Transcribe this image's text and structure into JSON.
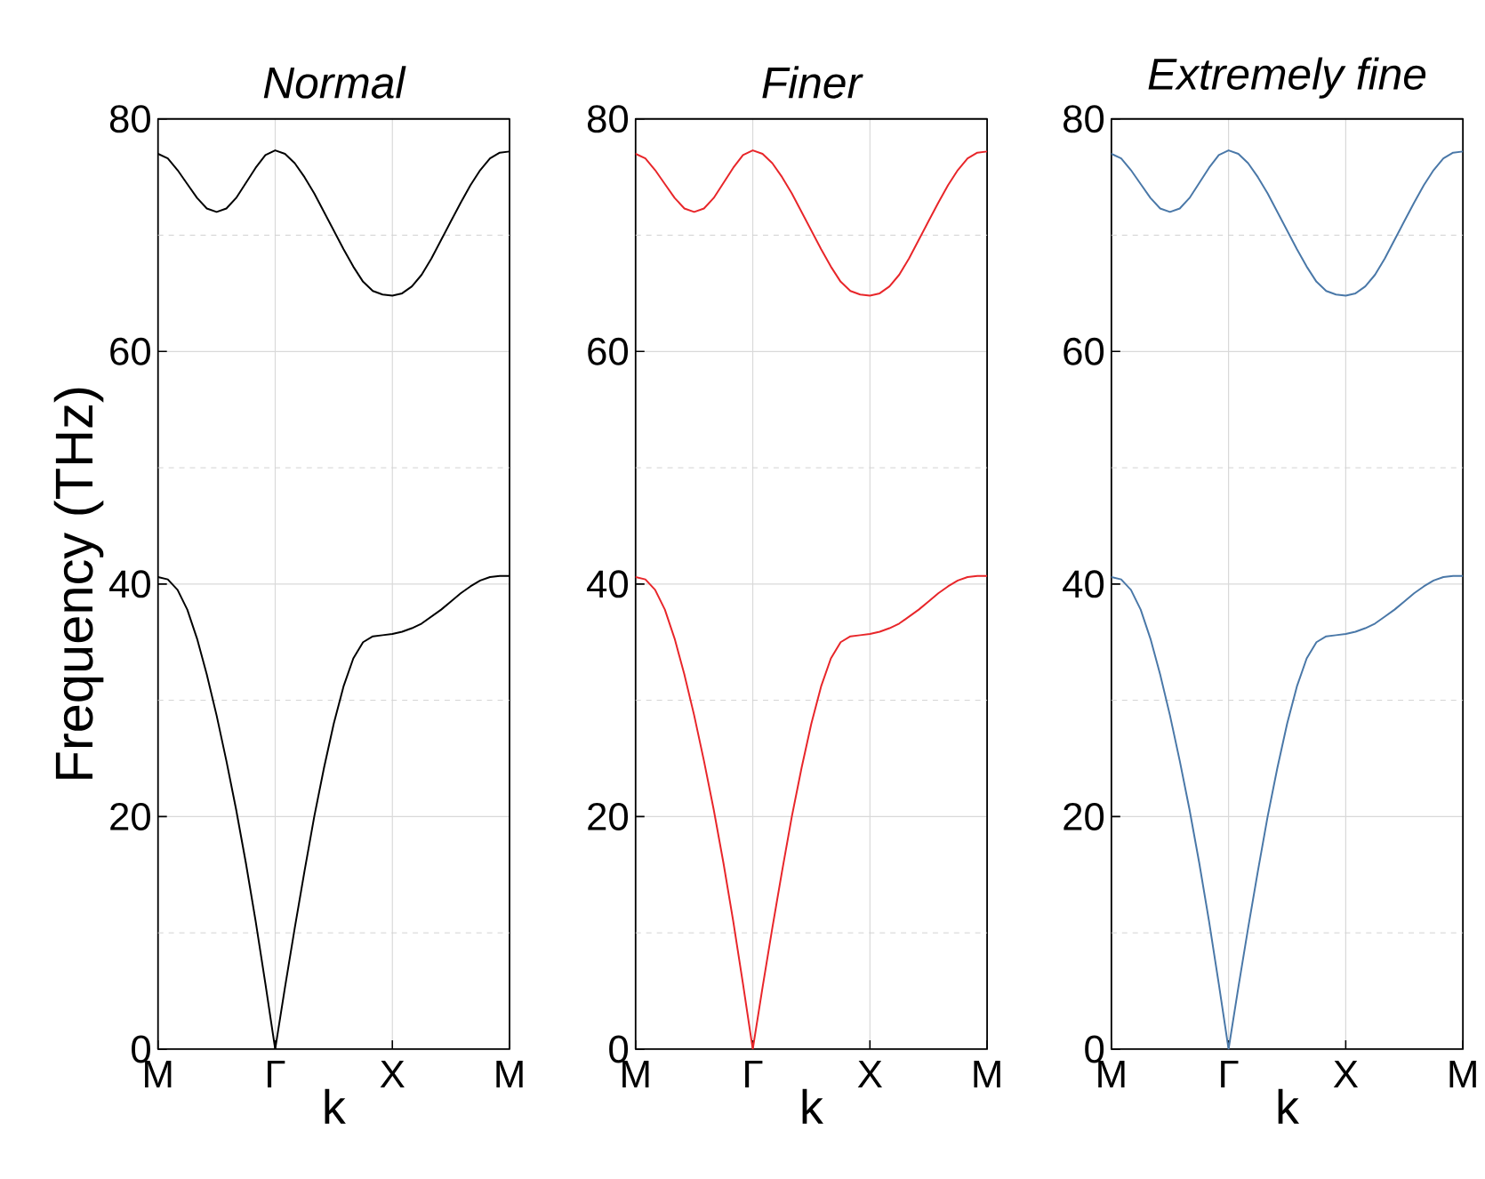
{
  "chart_data": [
    {
      "type": "line",
      "title": "Normal",
      "xlabel": "k",
      "ylabel": "Frequency (THz)",
      "ylim": [
        0,
        80
      ],
      "grid": true,
      "categories": [
        "M",
        null,
        null,
        null,
        null,
        null,
        null,
        null,
        null,
        null,
        null,
        null,
        "Γ",
        null,
        null,
        null,
        null,
        null,
        null,
        null,
        null,
        null,
        null,
        null,
        "X",
        null,
        null,
        null,
        null,
        null,
        null,
        null,
        null,
        null,
        null,
        null,
        "M"
      ],
      "yticks": [
        0,
        20,
        40,
        60,
        80,
        {
          "value": 10,
          "label": null
        },
        {
          "value": 30,
          "label": null
        },
        {
          "value": 50,
          "label": null
        },
        {
          "value": 70,
          "label": null
        }
      ],
      "series": [
        {
          "color": "#000000",
          "values": [
            77.0,
            76.6,
            75.6,
            74.4,
            73.2,
            72.3,
            72.0,
            72.3,
            73.2,
            74.5,
            75.8,
            76.9,
            77.3,
            77.0,
            76.2,
            75.0,
            73.6,
            72.0,
            70.4,
            68.8,
            67.3,
            66.0,
            65.2,
            64.9,
            64.8,
            65.0,
            65.6,
            66.6,
            68.0,
            69.6,
            71.2,
            72.8,
            74.3,
            75.6,
            76.6,
            77.1,
            77.2
          ]
        },
        {
          "color": "#000000",
          "values": [
            40.6,
            40.4,
            39.5,
            37.8,
            35.3,
            32.2,
            28.7,
            24.8,
            20.6,
            16.0,
            11.0,
            5.6,
            0,
            5.3,
            10.4,
            15.3,
            20.0,
            24.2,
            28.0,
            31.2,
            33.6,
            35.0,
            35.5,
            35.6,
            35.7,
            35.9,
            36.2,
            36.6,
            37.2,
            37.8,
            38.5,
            39.2,
            39.8,
            40.3,
            40.6,
            40.7,
            40.7
          ]
        }
      ]
    },
    {
      "type": "line",
      "title": "Finer",
      "xlabel": "k",
      "ylim": [
        0,
        80
      ],
      "grid": true,
      "categories": [
        "M",
        null,
        null,
        null,
        null,
        null,
        null,
        null,
        null,
        null,
        null,
        null,
        "Γ",
        null,
        null,
        null,
        null,
        null,
        null,
        null,
        null,
        null,
        null,
        null,
        "X",
        null,
        null,
        null,
        null,
        null,
        null,
        null,
        null,
        null,
        null,
        null,
        "M"
      ],
      "yticks": [
        0,
        20,
        40,
        60,
        80,
        {
          "value": 10,
          "label": null
        },
        {
          "value": 30,
          "label": null
        },
        {
          "value": 50,
          "label": null
        },
        {
          "value": 70,
          "label": null
        }
      ],
      "series": [
        {
          "color": "#e8262a",
          "values": [
            77.0,
            76.6,
            75.6,
            74.4,
            73.2,
            72.3,
            72.0,
            72.3,
            73.2,
            74.5,
            75.8,
            76.9,
            77.3,
            77.0,
            76.2,
            75.0,
            73.6,
            72.0,
            70.4,
            68.8,
            67.3,
            66.0,
            65.2,
            64.9,
            64.8,
            65.0,
            65.6,
            66.6,
            68.0,
            69.6,
            71.2,
            72.8,
            74.3,
            75.6,
            76.6,
            77.1,
            77.2
          ]
        },
        {
          "color": "#e8262a",
          "values": [
            40.6,
            40.4,
            39.5,
            37.8,
            35.3,
            32.2,
            28.7,
            24.8,
            20.6,
            16.0,
            11.0,
            5.6,
            0,
            5.3,
            10.4,
            15.3,
            20.0,
            24.2,
            28.0,
            31.2,
            33.6,
            35.0,
            35.5,
            35.6,
            35.7,
            35.9,
            36.2,
            36.6,
            37.2,
            37.8,
            38.5,
            39.2,
            39.8,
            40.3,
            40.6,
            40.7,
            40.7
          ]
        }
      ]
    },
    {
      "type": "line",
      "title": "Extremely fine",
      "xlabel": "k",
      "ylim": [
        0,
        80
      ],
      "grid": true,
      "categories": [
        "M",
        null,
        null,
        null,
        null,
        null,
        null,
        null,
        null,
        null,
        null,
        null,
        "Γ",
        null,
        null,
        null,
        null,
        null,
        null,
        null,
        null,
        null,
        null,
        null,
        "X",
        null,
        null,
        null,
        null,
        null,
        null,
        null,
        null,
        null,
        null,
        null,
        "M"
      ],
      "yticks": [
        0,
        20,
        40,
        60,
        80,
        {
          "value": 10,
          "label": null
        },
        {
          "value": 30,
          "label": null
        },
        {
          "value": 50,
          "label": null
        },
        {
          "value": 70,
          "label": null
        }
      ],
      "series": [
        {
          "color": "#4a78a8",
          "values": [
            77.0,
            76.6,
            75.6,
            74.4,
            73.2,
            72.3,
            72.0,
            72.3,
            73.2,
            74.5,
            75.8,
            76.9,
            77.3,
            77.0,
            76.2,
            75.0,
            73.6,
            72.0,
            70.4,
            68.8,
            67.3,
            66.0,
            65.2,
            64.9,
            64.8,
            65.0,
            65.6,
            66.6,
            68.0,
            69.6,
            71.2,
            72.8,
            74.3,
            75.6,
            76.6,
            77.1,
            77.2
          ]
        },
        {
          "color": "#4a78a8",
          "values": [
            40.6,
            40.4,
            39.5,
            37.8,
            35.3,
            32.2,
            28.7,
            24.8,
            20.6,
            16.0,
            11.0,
            5.6,
            0,
            5.3,
            10.4,
            15.3,
            20.0,
            24.2,
            28.0,
            31.2,
            33.6,
            35.0,
            35.5,
            35.6,
            35.7,
            35.9,
            36.2,
            36.6,
            37.2,
            37.8,
            38.5,
            39.2,
            39.8,
            40.3,
            40.6,
            40.7,
            40.7
          ]
        }
      ]
    }
  ]
}
